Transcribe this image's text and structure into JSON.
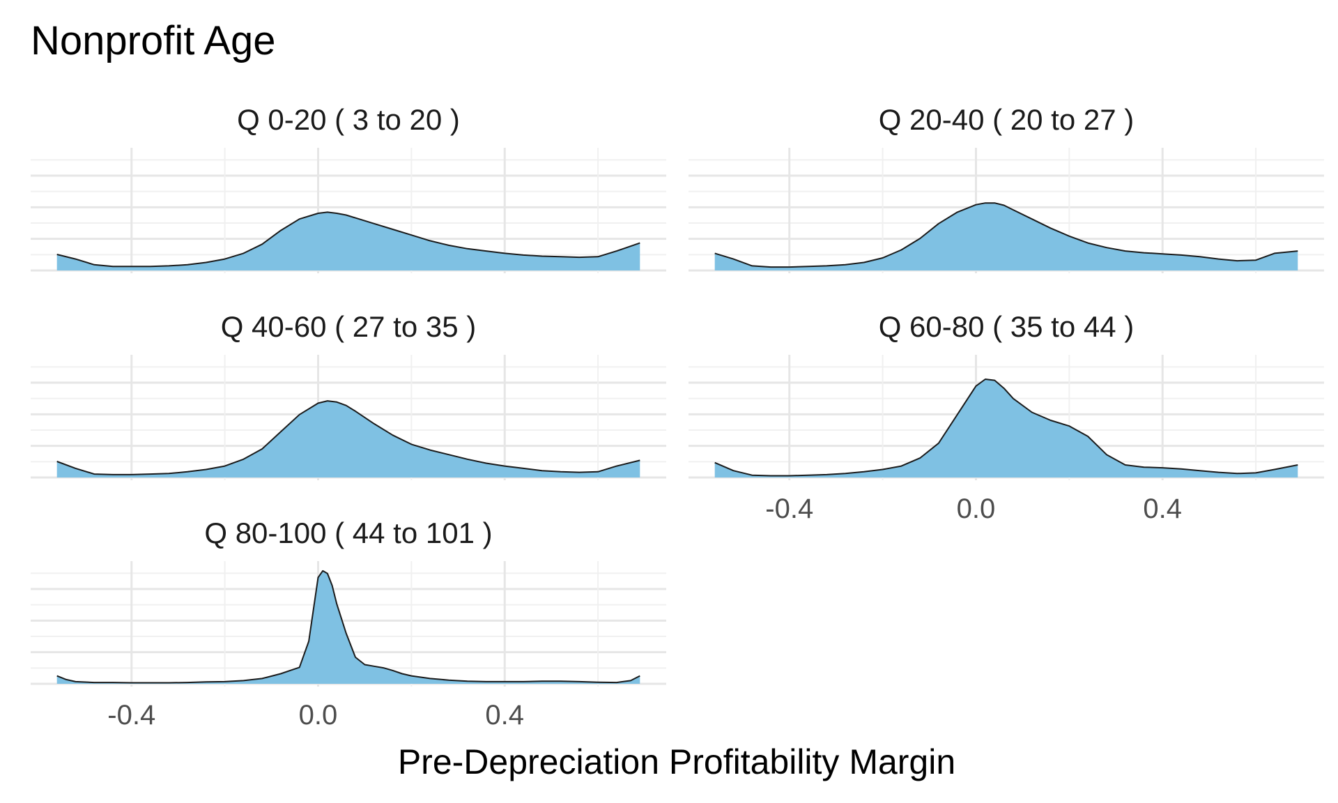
{
  "chart_data": {
    "type": "area",
    "title": "Nonprofit Age",
    "xlabel": "Pre-Depreciation Profitability Margin",
    "ylabel": "",
    "xlim": [
      -0.56,
      0.69
    ],
    "x_ticks": [
      -0.4,
      0.0,
      0.4
    ],
    "x_tick_labels": [
      "-0.4",
      "0.0",
      "0.4"
    ],
    "grid": true,
    "fill_color": "#7fc1e3",
    "line_color": "#1a1a1a",
    "panels": [
      {
        "label": "Q 0-20   ( 3 to 20 )",
        "x": [
          -0.56,
          -0.52,
          -0.48,
          -0.44,
          -0.4,
          -0.36,
          -0.32,
          -0.28,
          -0.24,
          -0.2,
          -0.16,
          -0.12,
          -0.08,
          -0.04,
          0.0,
          0.02,
          0.04,
          0.06,
          0.08,
          0.12,
          0.16,
          0.2,
          0.24,
          0.28,
          0.32,
          0.36,
          0.4,
          0.44,
          0.48,
          0.52,
          0.56,
          0.6,
          0.64,
          0.69
        ],
        "y": [
          0.28,
          0.2,
          0.1,
          0.07,
          0.07,
          0.07,
          0.08,
          0.1,
          0.14,
          0.2,
          0.3,
          0.46,
          0.7,
          0.9,
          1.0,
          1.02,
          1.0,
          0.97,
          0.92,
          0.82,
          0.72,
          0.62,
          0.52,
          0.44,
          0.38,
          0.34,
          0.3,
          0.27,
          0.25,
          0.24,
          0.23,
          0.24,
          0.34,
          0.48
        ]
      },
      {
        "label": "Q 20-40   ( 20 to 27 )",
        "x": [
          -0.56,
          -0.52,
          -0.48,
          -0.44,
          -0.4,
          -0.36,
          -0.32,
          -0.28,
          -0.24,
          -0.2,
          -0.16,
          -0.12,
          -0.08,
          -0.04,
          0.0,
          0.02,
          0.04,
          0.06,
          0.08,
          0.12,
          0.16,
          0.2,
          0.24,
          0.28,
          0.32,
          0.36,
          0.4,
          0.44,
          0.48,
          0.52,
          0.56,
          0.6,
          0.64,
          0.69
        ],
        "y": [
          0.3,
          0.2,
          0.08,
          0.06,
          0.06,
          0.07,
          0.08,
          0.1,
          0.14,
          0.22,
          0.36,
          0.56,
          0.82,
          1.02,
          1.15,
          1.18,
          1.18,
          1.14,
          1.06,
          0.9,
          0.74,
          0.6,
          0.48,
          0.4,
          0.34,
          0.31,
          0.29,
          0.27,
          0.24,
          0.2,
          0.17,
          0.18,
          0.3,
          0.34
        ]
      },
      {
        "label": "Q 40-60   ( 27 to 35 )",
        "x": [
          -0.56,
          -0.52,
          -0.48,
          -0.44,
          -0.4,
          -0.36,
          -0.32,
          -0.28,
          -0.24,
          -0.2,
          -0.16,
          -0.12,
          -0.08,
          -0.04,
          0.0,
          0.02,
          0.04,
          0.06,
          0.08,
          0.12,
          0.16,
          0.2,
          0.24,
          0.28,
          0.32,
          0.36,
          0.4,
          0.44,
          0.48,
          0.52,
          0.56,
          0.6,
          0.64,
          0.69
        ],
        "y": [
          0.28,
          0.16,
          0.06,
          0.05,
          0.05,
          0.06,
          0.07,
          0.1,
          0.14,
          0.2,
          0.32,
          0.5,
          0.8,
          1.1,
          1.3,
          1.34,
          1.32,
          1.26,
          1.16,
          0.94,
          0.74,
          0.58,
          0.48,
          0.4,
          0.32,
          0.25,
          0.2,
          0.16,
          0.12,
          0.1,
          0.09,
          0.1,
          0.2,
          0.3
        ]
      },
      {
        "label": "Q 60-80   ( 35 to 44 )",
        "x": [
          -0.56,
          -0.52,
          -0.48,
          -0.44,
          -0.4,
          -0.36,
          -0.32,
          -0.28,
          -0.24,
          -0.2,
          -0.16,
          -0.12,
          -0.08,
          -0.04,
          0.0,
          0.02,
          0.04,
          0.06,
          0.08,
          0.12,
          0.16,
          0.2,
          0.24,
          0.28,
          0.32,
          0.36,
          0.4,
          0.44,
          0.48,
          0.52,
          0.56,
          0.6,
          0.64,
          0.69
        ],
        "y": [
          0.26,
          0.12,
          0.04,
          0.03,
          0.03,
          0.04,
          0.05,
          0.07,
          0.1,
          0.14,
          0.2,
          0.34,
          0.6,
          1.1,
          1.6,
          1.72,
          1.7,
          1.56,
          1.38,
          1.14,
          1.0,
          0.9,
          0.72,
          0.4,
          0.22,
          0.18,
          0.17,
          0.15,
          0.12,
          0.09,
          0.07,
          0.08,
          0.14,
          0.22
        ]
      },
      {
        "label": "Q 80-100   ( 44 to 101 )",
        "x": [
          -0.56,
          -0.54,
          -0.52,
          -0.48,
          -0.44,
          -0.4,
          -0.36,
          -0.32,
          -0.28,
          -0.24,
          -0.2,
          -0.16,
          -0.12,
          -0.08,
          -0.06,
          -0.04,
          -0.02,
          0.0,
          0.01,
          0.02,
          0.03,
          0.04,
          0.06,
          0.08,
          0.1,
          0.12,
          0.14,
          0.16,
          0.18,
          0.2,
          0.24,
          0.28,
          0.32,
          0.36,
          0.4,
          0.44,
          0.48,
          0.52,
          0.56,
          0.6,
          0.64,
          0.67,
          0.69
        ],
        "y": [
          0.3,
          0.16,
          0.08,
          0.05,
          0.05,
          0.04,
          0.04,
          0.04,
          0.05,
          0.07,
          0.08,
          0.12,
          0.2,
          0.38,
          0.5,
          0.62,
          1.6,
          4.0,
          4.25,
          4.15,
          3.7,
          3.0,
          1.9,
          1.0,
          0.72,
          0.66,
          0.6,
          0.5,
          0.38,
          0.3,
          0.2,
          0.14,
          0.1,
          0.08,
          0.08,
          0.08,
          0.1,
          0.1,
          0.08,
          0.06,
          0.05,
          0.12,
          0.3
        ]
      }
    ]
  }
}
